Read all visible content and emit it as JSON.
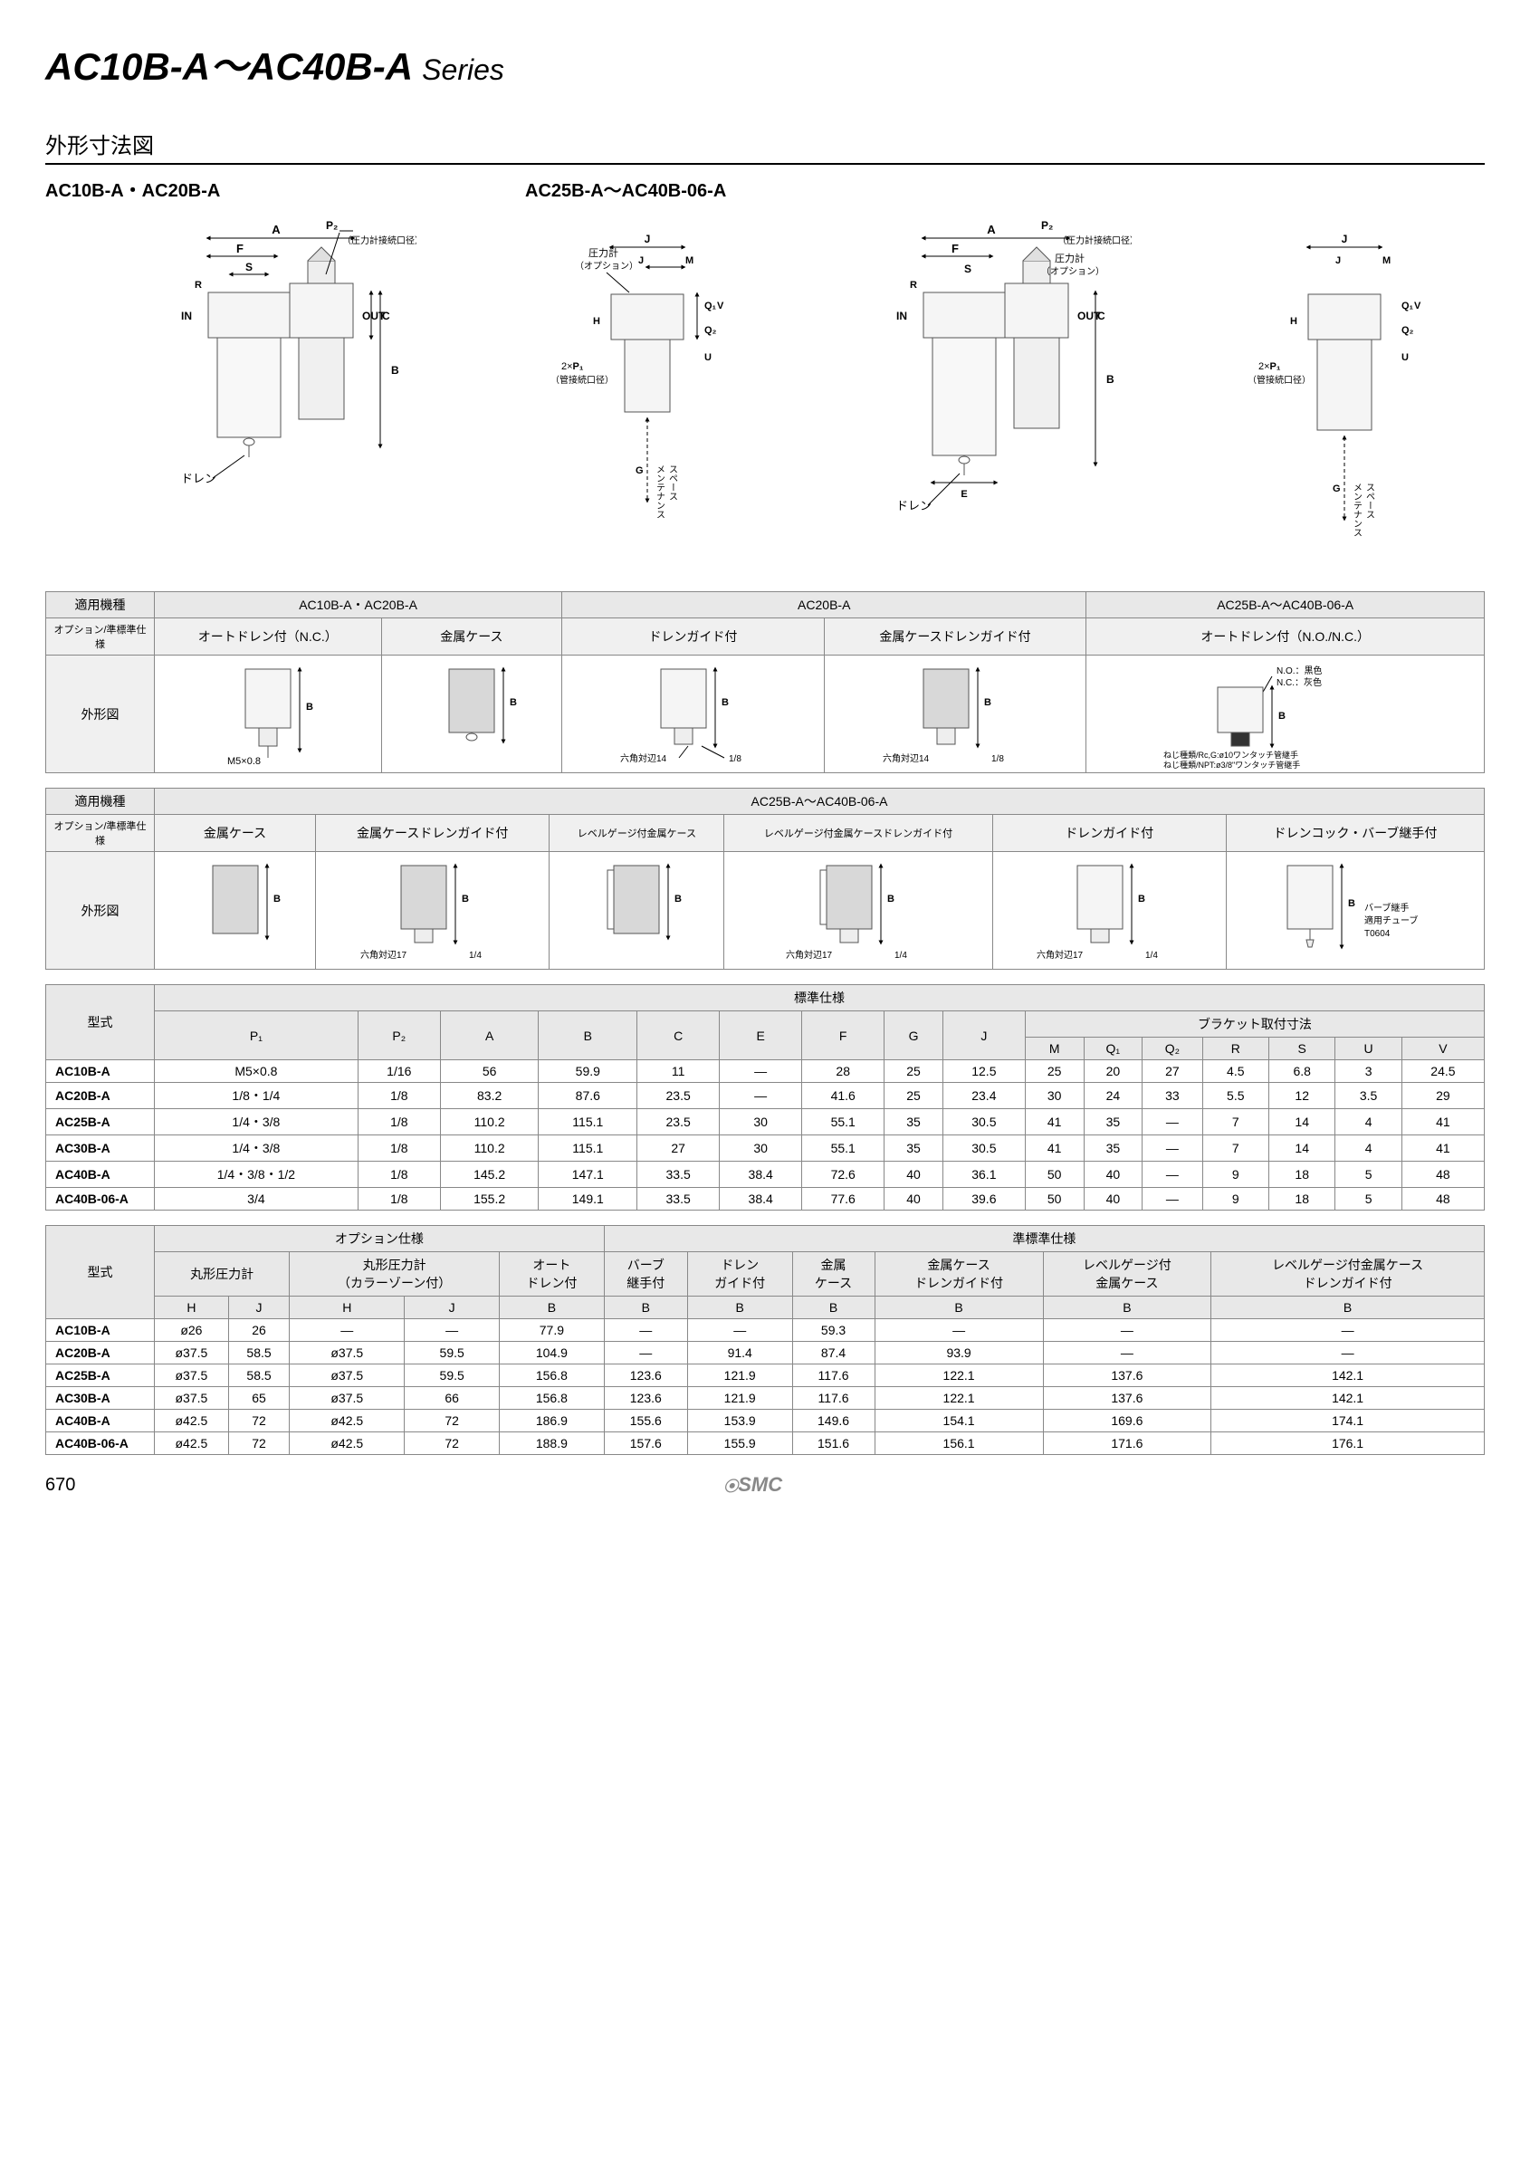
{
  "title_series": "AC10B-A～AC40B-A",
  "title_word": "Series",
  "section_title": "外形寸法図",
  "subheading_left": "AC10B-A・AC20B-A",
  "subheading_right": "AC25B-A～AC40B-06-A",
  "diagram_labels": {
    "A": "A",
    "F": "F",
    "S": "S",
    "R": "R",
    "C": "C",
    "B": "B",
    "H": "H",
    "J": "J",
    "M": "M",
    "U": "U",
    "V": "V",
    "Q1": "Q₁",
    "Q2": "Q₂",
    "P1": "P₁",
    "P2": "P₂",
    "G": "G",
    "E": "E",
    "IN": "IN",
    "OUT": "OUT",
    "drain": "ドレン",
    "gauge_port": "（圧力計接続口径）",
    "gauge_opt": "圧力計\n（オプション）",
    "pipe_port_2x": "2×P₁\n（管接続口径）",
    "maint_space": "メンテナンス\nスペース"
  },
  "table1": {
    "row1": [
      "適用機種",
      "AC10B-A・AC20B-A",
      "AC20B-A",
      "AC25B-A～AC40B-06-A"
    ],
    "row2_label": "オプション/準標準仕様",
    "row2_cols": [
      "オートドレン付（N.C.）",
      "金属ケース",
      "ドレンガイド付",
      "金属ケースドレンガイド付",
      "オートドレン付（N.O./N.C.）"
    ],
    "shapes_label": "外形図",
    "shape_notes": [
      "M5×0.8",
      "",
      "六角対辺14　　1/8",
      "六角対辺14　　1/8",
      "N.O.：黒色\nN.C.：灰色\nねじ種類/Rc,G:ø10ワンタッチ管継手\nねじ種類/NPT:ø3/8\"ワンタッチ管継手"
    ]
  },
  "table2": {
    "row1": [
      "適用機種",
      "AC25B-A～AC40B-06-A"
    ],
    "row2_label": "オプション/準標準仕様",
    "row2_cols": [
      "金属ケース",
      "金属ケースドレンガイド付",
      "レベルゲージ付金属ケース",
      "レベルゲージ付金属ケースドレンガイド付",
      "ドレンガイド付",
      "ドレンコック・バーブ継手付"
    ],
    "shapes_label": "外形図",
    "shape_notes": [
      "",
      "六角対辺17　　1/4",
      "",
      "六角対辺17　　1/4",
      "六角対辺17　　1/4",
      "バーブ継手\n適用チューブ\nT0604"
    ]
  },
  "table3": {
    "header1": [
      "型式",
      "標準仕様"
    ],
    "header2": [
      "P₁",
      "P₂",
      "A",
      "B",
      "C",
      "E",
      "F",
      "G",
      "J",
      "ブラケット取付寸法"
    ],
    "header3": [
      "M",
      "Q₁",
      "Q₂",
      "R",
      "S",
      "U",
      "V"
    ],
    "rows": [
      [
        "AC10B-A",
        "M5×0.8",
        "1/16",
        "56",
        "59.9",
        "11",
        "—",
        "28",
        "25",
        "12.5",
        "25",
        "20",
        "27",
        "4.5",
        "6.8",
        "3",
        "24.5"
      ],
      [
        "AC20B-A",
        "1/8・1/4",
        "1/8",
        "83.2",
        "87.6",
        "23.5",
        "—",
        "41.6",
        "25",
        "23.4",
        "30",
        "24",
        "33",
        "5.5",
        "12",
        "3.5",
        "29"
      ],
      [
        "AC25B-A",
        "1/4・3/8",
        "1/8",
        "110.2",
        "115.1",
        "23.5",
        "30",
        "55.1",
        "35",
        "30.5",
        "41",
        "35",
        "—",
        "7",
        "14",
        "4",
        "41"
      ],
      [
        "AC30B-A",
        "1/4・3/8",
        "1/8",
        "110.2",
        "115.1",
        "27",
        "30",
        "55.1",
        "35",
        "30.5",
        "41",
        "35",
        "—",
        "7",
        "14",
        "4",
        "41"
      ],
      [
        "AC40B-A",
        "1/4・3/8・1/2",
        "1/8",
        "145.2",
        "147.1",
        "33.5",
        "38.4",
        "72.6",
        "40",
        "36.1",
        "50",
        "40",
        "—",
        "9",
        "18",
        "5",
        "48"
      ],
      [
        "AC40B-06-A",
        "3/4",
        "1/8",
        "155.2",
        "149.1",
        "33.5",
        "38.4",
        "77.6",
        "40",
        "39.6",
        "50",
        "40",
        "—",
        "9",
        "18",
        "5",
        "48"
      ]
    ]
  },
  "table4": {
    "header1": [
      "型式",
      "オプション仕様",
      "準標準仕様"
    ],
    "header2": [
      "丸形圧力計",
      "丸形圧力計\n（カラーゾーン付）",
      "オート\nドレン付",
      "バーブ\n継手付",
      "ドレン\nガイド付",
      "金属\nケース",
      "金属ケース\nドレンガイド付",
      "レベルゲージ付\n金属ケース",
      "レベルゲージ付金属ケース\nドレンガイド付"
    ],
    "header3": [
      "H",
      "J",
      "H",
      "J",
      "B",
      "B",
      "B",
      "B",
      "B",
      "B",
      "B"
    ],
    "rows": [
      [
        "AC10B-A",
        "ø26",
        "26",
        "—",
        "—",
        "77.9",
        "—",
        "—",
        "59.3",
        "—",
        "—",
        "—"
      ],
      [
        "AC20B-A",
        "ø37.5",
        "58.5",
        "ø37.5",
        "59.5",
        "104.9",
        "—",
        "91.4",
        "87.4",
        "93.9",
        "—",
        "—"
      ],
      [
        "AC25B-A",
        "ø37.5",
        "58.5",
        "ø37.5",
        "59.5",
        "156.8",
        "123.6",
        "121.9",
        "117.6",
        "122.1",
        "137.6",
        "142.1"
      ],
      [
        "AC30B-A",
        "ø37.5",
        "65",
        "ø37.5",
        "66",
        "156.8",
        "123.6",
        "121.9",
        "117.6",
        "122.1",
        "137.6",
        "142.1"
      ],
      [
        "AC40B-A",
        "ø42.5",
        "72",
        "ø42.5",
        "72",
        "186.9",
        "155.6",
        "153.9",
        "149.6",
        "154.1",
        "169.6",
        "174.1"
      ],
      [
        "AC40B-06-A",
        "ø42.5",
        "72",
        "ø42.5",
        "72",
        "188.9",
        "157.6",
        "155.9",
        "151.6",
        "156.1",
        "171.6",
        "176.1"
      ]
    ]
  },
  "page_number": "670",
  "brand": "SMC",
  "colors": {
    "text": "#000000",
    "bg": "#ffffff",
    "border": "#888888",
    "header_bg": "#e8e8e8",
    "brand_gray": "#888888",
    "diagram_fill": "#f5f5f5",
    "diagram_line": "#555555"
  }
}
